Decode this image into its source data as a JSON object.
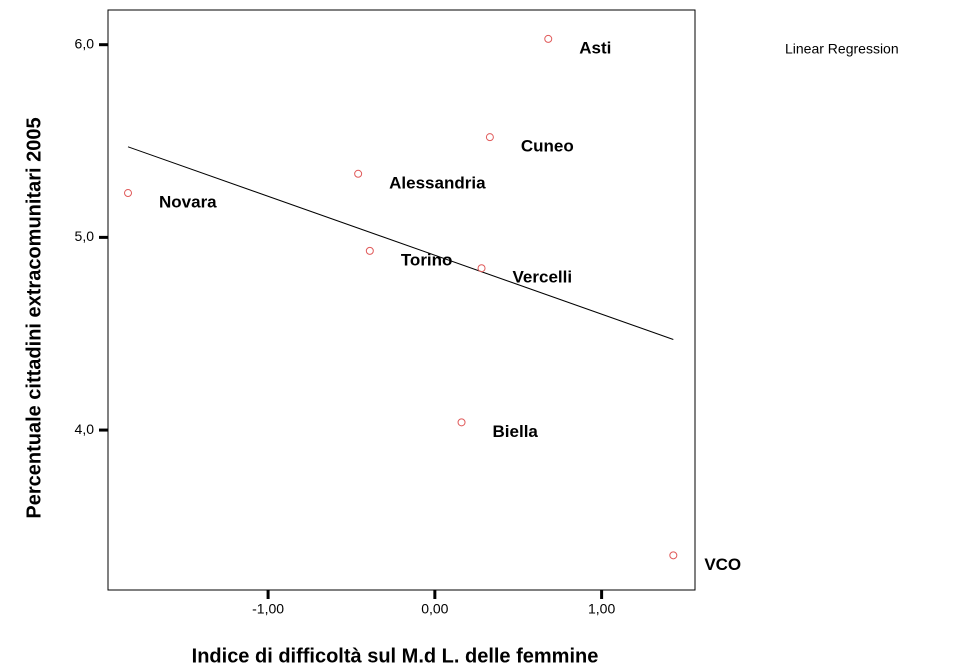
{
  "chart_data": {
    "type": "scatter",
    "x_label": "Indice di difficoltà sul M.d L. delle femmine",
    "y_label": "Percentuale cittadini extracomunitari 2005",
    "legend": "Linear Regression",
    "color": "#e05a5a",
    "points": [
      "Asti",
      "Cuneo",
      "Alessandria",
      "Novara",
      "Torino",
      "Vercelli",
      "Biella",
      "VCO"
    ],
    "x": [
      0.68,
      0.33,
      -0.46,
      -1.84,
      -0.39,
      0.28,
      0.16,
      1.43
    ],
    "values": [
      6.03,
      5.52,
      5.33,
      5.23,
      4.93,
      4.84,
      4.04,
      3.35
    ],
    "regression": {
      "x": [
        -1.84,
        1.43
      ],
      "y": [
        5.47,
        4.47
      ]
    },
    "xlim": [
      -1.96,
      1.56
    ],
    "ylim": [
      3.17,
      6.18
    ],
    "xticks": [
      {
        "value": -1,
        "label": "-1,00"
      },
      {
        "value": 0,
        "label": "0,00"
      },
      {
        "value": 1,
        "label": "1,00"
      }
    ],
    "yticks": [
      {
        "value": 4,
        "label": "4,0"
      },
      {
        "value": 5,
        "label": "5,0"
      },
      {
        "value": 6,
        "label": "6,0"
      }
    ]
  }
}
